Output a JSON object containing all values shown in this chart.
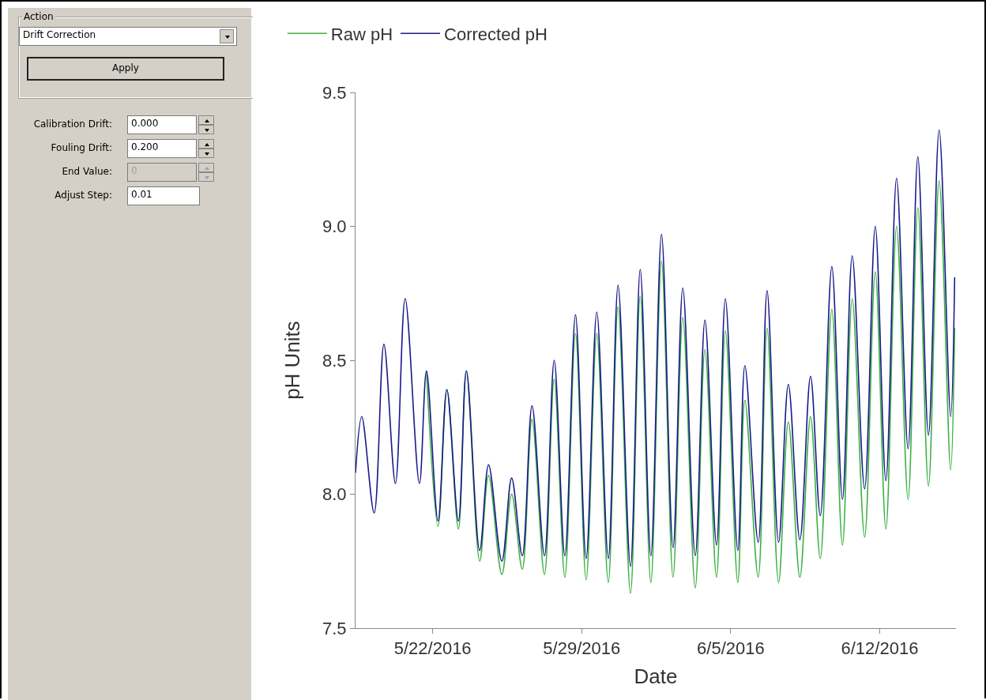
{
  "chart_data": [
    {
      "type": "other",
      "title": "Action",
      "annotations": [
        "Drift Correction",
        "Apply",
        "Calibration Drift:",
        "0.000",
        "Fouling Drift:",
        "0.200",
        "End Value:",
        "0",
        "Adjust Step:",
        "0.01"
      ]
    },
    {
      "type": "line",
      "xlabel": "Date",
      "ylabel": "pH Units",
      "legend": "top left",
      "grid": false,
      "marker": "none",
      "line_style": "solid",
      "x": [
        "2016-05-18T09:00",
        "2016-05-18T16:00",
        "2016-05-19T06:00",
        "2016-05-19T17:00",
        "2016-05-20T06:00",
        "2016-05-20T17:00",
        "2016-05-21T09:00",
        "2016-05-21T17:00",
        "2016-05-22T06:00",
        "2016-05-22T16:00",
        "2016-05-23T05:00",
        "2016-05-23T14:00",
        "2016-05-24T05:00",
        "2016-05-24T15:00",
        "2016-05-25T06:00",
        "2016-05-25T17:00",
        "2016-05-26T05:00",
        "2016-05-26T16:00",
        "2016-05-27T06:00",
        "2016-05-27T17:00",
        "2016-05-28T05:00",
        "2016-05-28T17:00",
        "2016-05-29T05:00",
        "2016-05-29T17:00",
        "2016-05-30T06:00",
        "2016-05-30T17:00",
        "2016-05-31T07:00",
        "2016-05-31T18:00",
        "2016-06-01T06:00",
        "2016-06-01T18:00",
        "2016-06-02T07:00",
        "2016-06-02T18:00",
        "2016-06-03T08:00",
        "2016-06-03T19:00",
        "2016-06-04T08:00",
        "2016-06-04T18:00",
        "2016-06-05T08:00",
        "2016-06-05T16:00",
        "2016-06-06T07:00",
        "2016-06-06T17:00",
        "2016-06-07T06:00",
        "2016-06-07T17:00",
        "2016-06-08T06:00",
        "2016-06-08T18:00",
        "2016-06-09T05:00",
        "2016-06-09T18:00",
        "2016-06-10T06:00",
        "2016-06-10T17:00",
        "2016-06-11T07:00",
        "2016-06-11T19:00",
        "2016-06-12T07:00",
        "2016-06-12T19:00",
        "2016-06-13T08:00",
        "2016-06-13T19:00",
        "2016-06-14T07:00",
        "2016-06-14T19:00",
        "2016-06-15T08:00",
        "2016-06-15T12:30"
      ],
      "series": [
        {
          "name": "Raw pH",
          "color": "#3cb043",
          "values": [
            null,
            null,
            null,
            null,
            null,
            null,
            null,
            8.46,
            7.88,
            8.39,
            7.87,
            8.46,
            7.75,
            8.07,
            7.7,
            8.0,
            7.72,
            8.28,
            7.7,
            8.43,
            7.69,
            8.6,
            7.68,
            8.6,
            7.67,
            8.7,
            7.63,
            8.74,
            7.67,
            8.87,
            7.69,
            8.66,
            7.65,
            8.54,
            7.69,
            8.61,
            7.67,
            8.35,
            7.69,
            8.62,
            7.67,
            8.27,
            7.69,
            8.29,
            7.76,
            8.69,
            7.81,
            8.73,
            7.84,
            8.83,
            7.87,
            9.0,
            7.98,
            9.07,
            8.03,
            9.17,
            8.09,
            8.62
          ]
        },
        {
          "name": "Corrected pH",
          "color": "#1a1a8c",
          "values": [
            8.08,
            8.29,
            7.93,
            8.56,
            8.04,
            8.73,
            8.04,
            8.46,
            7.9,
            8.39,
            7.9,
            8.46,
            7.79,
            8.11,
            7.75,
            8.06,
            7.77,
            8.33,
            7.77,
            8.5,
            7.77,
            8.67,
            7.76,
            8.68,
            7.76,
            8.78,
            7.73,
            8.84,
            7.77,
            8.97,
            7.8,
            8.77,
            7.77,
            8.65,
            7.81,
            8.73,
            7.79,
            8.48,
            7.82,
            8.76,
            7.82,
            8.41,
            7.83,
            8.44,
            7.92,
            8.85,
            7.98,
            8.89,
            8.02,
            9.0,
            8.05,
            9.18,
            8.17,
            9.26,
            8.22,
            9.36,
            8.29,
            8.81
          ]
        }
      ],
      "xlim": [
        "2016-05-18T09:00",
        "2016-06-15T14:00"
      ],
      "xticks": [
        {
          "value": "2016-05-22",
          "label": "5/22/2016"
        },
        {
          "value": "2016-05-29",
          "label": "5/29/2016"
        },
        {
          "value": "2016-06-05",
          "label": "6/5/2016"
        },
        {
          "value": "2016-06-12",
          "label": "6/12/2016"
        }
      ],
      "ylim": [
        7.5,
        9.5
      ],
      "yticks": [
        7.5,
        {
          "value": 8,
          "label": "8.0"
        },
        8.5,
        {
          "value": 9,
          "label": "9.0"
        },
        9.5
      ]
    }
  ]
}
